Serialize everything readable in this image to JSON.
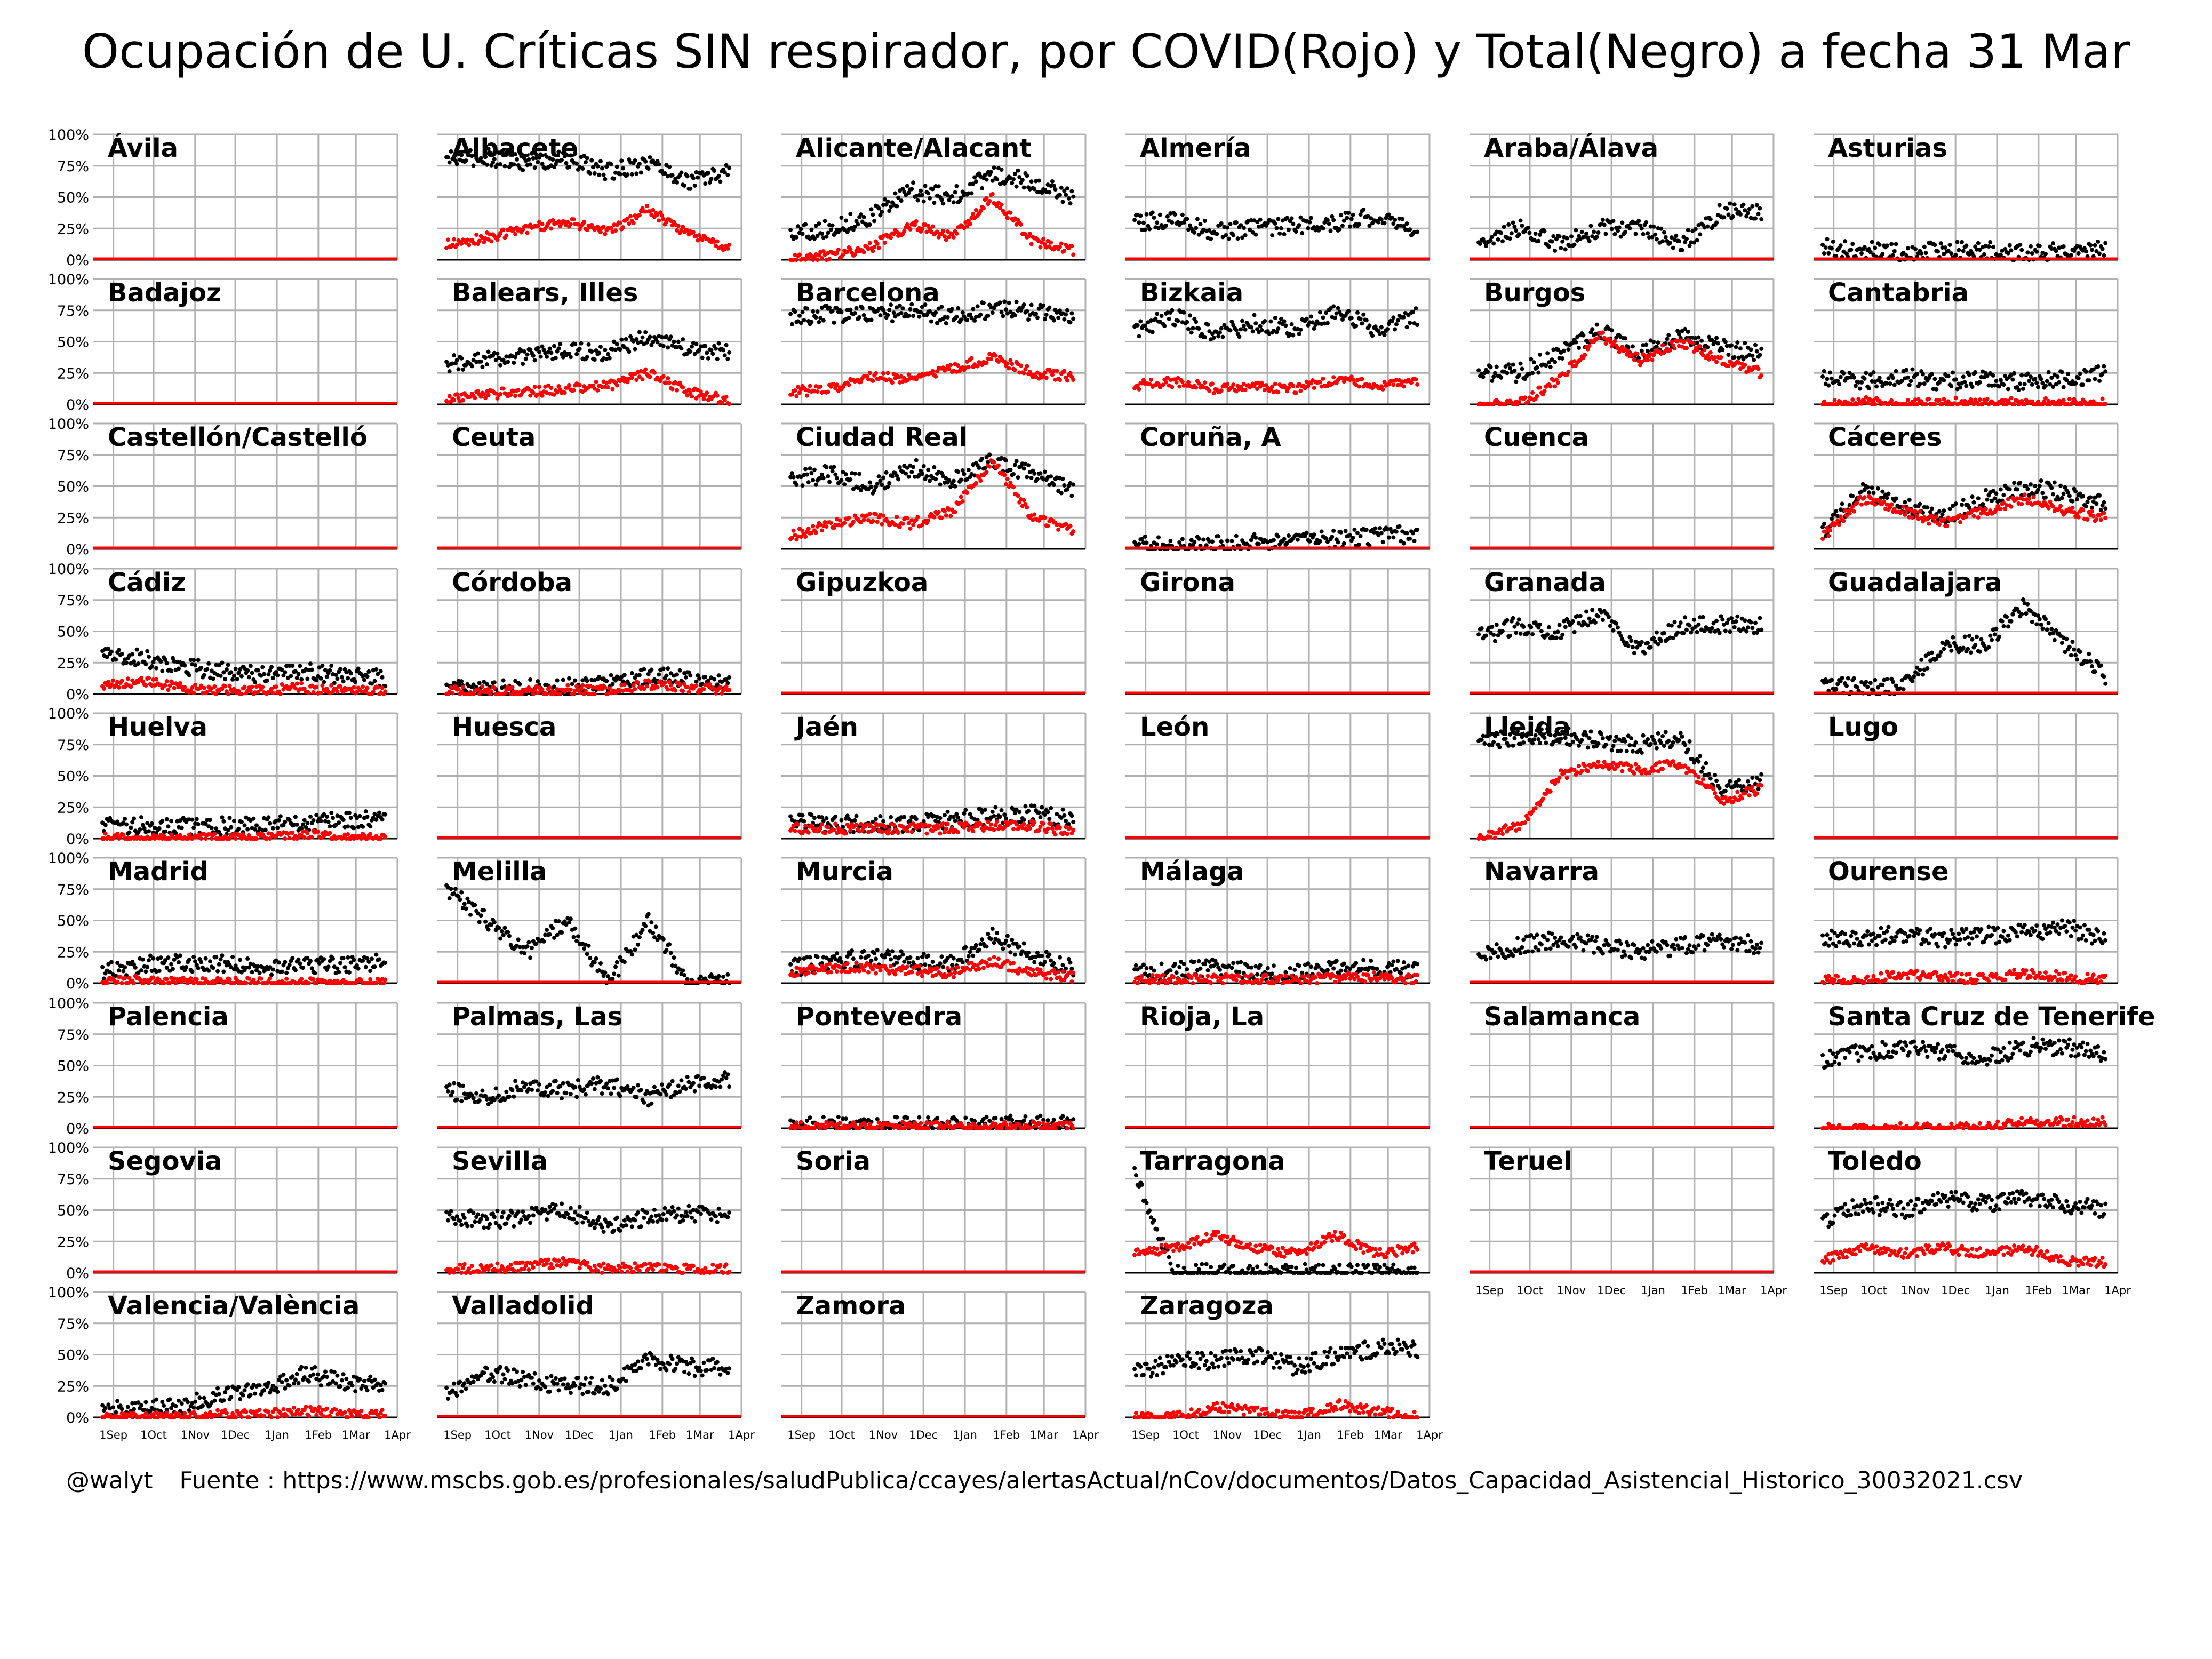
{
  "chart_data": {
    "type": "scatter",
    "title": "Ocupación de U. Críticas SIN respirador, por COVID(Rojo) y Total(Negro) a fecha 31 Mar",
    "footer": {
      "handle": "@walyt",
      "source": "Fuente : https://www.mscbs.gob.es/profesionales/saludPublica/ccayes/alertasActual/nCov/documentos/Datos_Capacidad_Asistencial_Historico_30032021.csv"
    },
    "ylim": [
      0,
      100
    ],
    "y_ticks": [
      "100%",
      "75%",
      "50%",
      "25%",
      "0%"
    ],
    "x_ticks": [
      "1Sep",
      "1Oct",
      "1Nov",
      "1Dec",
      "1Jan",
      "1Feb",
      "1Mar",
      "1Apr"
    ],
    "x_range": [
      "2020-08-17",
      "2021-04-01"
    ],
    "grid": true,
    "colors": {
      "covid": "#ff0000",
      "total": "#000000",
      "grid": "#b0b0b0"
    },
    "series_legend": {
      "covid": "COVID(Rojo)",
      "total": "Total(Negro)"
    },
    "panels": [
      {
        "name": "Ávila",
        "total": [
          0,
          0,
          0,
          0,
          0,
          0,
          0,
          0
        ],
        "covid": [
          0,
          0,
          0,
          0,
          0,
          0,
          0,
          0
        ]
      },
      {
        "name": "Albacete",
        "total": [
          80,
          82,
          78,
          80,
          70,
          78,
          62,
          70
        ],
        "covid": [
          12,
          18,
          25,
          30,
          22,
          40,
          20,
          8
        ]
      },
      {
        "name": "Alicante/Alacant",
        "total": [
          22,
          25,
          35,
          55,
          50,
          68,
          62,
          50
        ],
        "covid": [
          2,
          3,
          10,
          28,
          18,
          50,
          15,
          8
        ]
      },
      {
        "name": "Almería",
        "total": [
          30,
          32,
          22,
          25,
          28,
          30,
          35,
          25
        ],
        "covid": [
          0,
          0,
          0,
          0,
          0,
          0,
          0,
          0
        ]
      },
      {
        "name": "Araba/Álava",
        "total": [
          12,
          25,
          12,
          25,
          25,
          12,
          38,
          38
        ],
        "covid": [
          0,
          0,
          0,
          0,
          0,
          0,
          0,
          0
        ]
      },
      {
        "name": "Asturias",
        "total": [
          10,
          8,
          5,
          8,
          8,
          5,
          8,
          8
        ],
        "covid": [
          0,
          0,
          0,
          0,
          0,
          0,
          0,
          0
        ]
      },
      {
        "name": "Badajoz",
        "total": [
          0,
          0,
          0,
          0,
          0,
          0,
          0,
          0
        ],
        "covid": [
          0,
          0,
          0,
          0,
          0,
          0,
          0,
          0
        ]
      },
      {
        "name": "Balears, Illes",
        "total": [
          32,
          35,
          38,
          42,
          42,
          55,
          45,
          42
        ],
        "covid": [
          5,
          8,
          10,
          12,
          15,
          25,
          10,
          3
        ]
      },
      {
        "name": "Barcelona",
        "total": [
          70,
          72,
          72,
          74,
          70,
          76,
          74,
          72
        ],
        "covid": [
          10,
          12,
          22,
          20,
          28,
          38,
          25,
          22
        ]
      },
      {
        "name": "Bizkaia",
        "total": [
          60,
          70,
          55,
          65,
          60,
          75,
          60,
          70
        ],
        "covid": [
          15,
          18,
          12,
          15,
          12,
          20,
          15,
          18
        ]
      },
      {
        "name": "Burgos",
        "total": [
          25,
          25,
          40,
          60,
          40,
          55,
          45,
          40
        ],
        "covid": [
          0,
          0,
          20,
          55,
          35,
          50,
          35,
          25
        ]
      },
      {
        "name": "Cantabria",
        "total": [
          20,
          18,
          22,
          18,
          20,
          18,
          20,
          25
        ],
        "covid": [
          0,
          2,
          0,
          2,
          0,
          2,
          0,
          2
        ]
      },
      {
        "name": "Castellón/Castelló",
        "total": [
          0,
          0,
          0,
          0,
          0,
          0,
          0,
          0
        ],
        "covid": [
          0,
          0,
          0,
          0,
          0,
          0,
          0,
          0
        ]
      },
      {
        "name": "Ceuta",
        "total": [
          0,
          0,
          0,
          0,
          0,
          0,
          0,
          0
        ],
        "covid": [
          0,
          0,
          0,
          0,
          0,
          0,
          0,
          0
        ]
      },
      {
        "name": "Ciudad Real",
        "total": [
          55,
          60,
          50,
          65,
          55,
          70,
          60,
          45
        ],
        "covid": [
          10,
          20,
          25,
          20,
          30,
          70,
          25,
          15
        ]
      },
      {
        "name": "Coruña, A",
        "total": [
          3,
          3,
          4,
          5,
          6,
          8,
          10,
          12
        ],
        "covid": [
          0,
          0,
          0,
          0,
          0,
          0,
          0,
          0
        ]
      },
      {
        "name": "Cuenca",
        "total": [
          0,
          0,
          0,
          0,
          0,
          0,
          0,
          0
        ],
        "covid": [
          0,
          0,
          0,
          0,
          0,
          0,
          0,
          0
        ]
      },
      {
        "name": "Cáceres",
        "total": [
          15,
          45,
          35,
          25,
          40,
          50,
          45,
          35
        ],
        "covid": [
          10,
          40,
          30,
          20,
          30,
          40,
          30,
          25
        ]
      },
      {
        "name": "Cádiz",
        "total": [
          32,
          28,
          22,
          18,
          15,
          18,
          15,
          12
        ],
        "covid": [
          8,
          10,
          5,
          3,
          3,
          5,
          3,
          2
        ]
      },
      {
        "name": "Córdoba",
        "total": [
          5,
          5,
          5,
          6,
          8,
          15,
          12,
          8
        ],
        "covid": [
          2,
          2,
          2,
          3,
          3,
          8,
          5,
          3
        ]
      },
      {
        "name": "Gipuzkoa",
        "total": [
          0,
          0,
          0,
          0,
          0,
          0,
          0,
          0
        ],
        "covid": [
          0,
          0,
          0,
          0,
          0,
          0,
          0,
          0
        ]
      },
      {
        "name": "Girona",
        "total": [
          0,
          0,
          0,
          0,
          0,
          0,
          0,
          0
        ],
        "covid": [
          0,
          0,
          0,
          0,
          0,
          0,
          0,
          0
        ]
      },
      {
        "name": "Granada",
        "total": [
          45,
          55,
          50,
          65,
          35,
          55,
          55,
          55
        ],
        "covid": [
          0,
          0,
          0,
          0,
          0,
          0,
          0,
          0
        ]
      },
      {
        "name": "Guadalajara",
        "total": [
          8,
          5,
          5,
          40,
          40,
          70,
          40,
          15
        ],
        "covid": [
          0,
          0,
          0,
          0,
          0,
          0,
          0,
          0
        ]
      },
      {
        "name": "Huelva",
        "total": [
          10,
          10,
          10,
          10,
          10,
          12,
          15,
          15
        ],
        "covid": [
          0,
          0,
          0,
          0,
          0,
          3,
          0,
          0
        ]
      },
      {
        "name": "Huesca",
        "total": [
          0,
          0,
          0,
          0,
          0,
          0,
          0,
          0
        ],
        "covid": [
          0,
          0,
          0,
          0,
          0,
          0,
          0,
          0
        ]
      },
      {
        "name": "Jaén",
        "total": [
          15,
          12,
          12,
          12,
          15,
          18,
          20,
          15
        ],
        "covid": [
          8,
          8,
          8,
          8,
          8,
          10,
          10,
          5
        ]
      },
      {
        "name": "León",
        "total": [
          0,
          0,
          0,
          0,
          0,
          0,
          0,
          0
        ],
        "covid": [
          0,
          0,
          0,
          0,
          0,
          0,
          0,
          0
        ]
      },
      {
        "name": "Lleida",
        "total": [
          75,
          82,
          82,
          78,
          75,
          80,
          40,
          45
        ],
        "covid": [
          0,
          10,
          50,
          60,
          55,
          60,
          30,
          40
        ]
      },
      {
        "name": "Lugo",
        "total": [
          0,
          0,
          0,
          0,
          0,
          0,
          0,
          0
        ],
        "covid": [
          0,
          0,
          0,
          0,
          0,
          0,
          0,
          0
        ]
      },
      {
        "name": "Madrid",
        "total": [
          10,
          15,
          16,
          15,
          12,
          14,
          15,
          16
        ],
        "covid": [
          2,
          2,
          1,
          1,
          0,
          0,
          0,
          0
        ]
      },
      {
        "name": "Melilla",
        "total": [
          75,
          50,
          25,
          50,
          0,
          50,
          0,
          0
        ],
        "covid": [
          0,
          0,
          0,
          0,
          0,
          0,
          0,
          0
        ]
      },
      {
        "name": "Murcia",
        "total": [
          12,
          18,
          20,
          18,
          15,
          38,
          22,
          12
        ],
        "covid": [
          8,
          12,
          12,
          10,
          8,
          18,
          8,
          5
        ]
      },
      {
        "name": "Málaga",
        "total": [
          8,
          10,
          12,
          10,
          8,
          12,
          12,
          10
        ],
        "covid": [
          2,
          3,
          3,
          3,
          2,
          5,
          5,
          3
        ]
      },
      {
        "name": "Navarra",
        "total": [
          20,
          30,
          35,
          30,
          25,
          30,
          35,
          30
        ],
        "covid": [
          0,
          0,
          0,
          0,
          0,
          0,
          0,
          0
        ]
      },
      {
        "name": "Ourense",
        "total": [
          35,
          35,
          40,
          35,
          38,
          40,
          45,
          35
        ],
        "covid": [
          2,
          3,
          8,
          5,
          3,
          8,
          5,
          2
        ]
      },
      {
        "name": "Palencia",
        "total": [
          0,
          0,
          0,
          0,
          0,
          0,
          0,
          0
        ],
        "covid": [
          0,
          0,
          0,
          0,
          0,
          0,
          0,
          0
        ]
      },
      {
        "name": "Palmas, Las",
        "total": [
          30,
          25,
          35,
          30,
          35,
          25,
          35,
          40
        ],
        "covid": [
          0,
          0,
          0,
          0,
          0,
          0,
          0,
          0
        ]
      },
      {
        "name": "Pontevedra",
        "total": [
          3,
          3,
          3,
          2,
          3,
          4,
          3,
          3
        ],
        "covid": [
          1,
          1,
          1,
          1,
          1,
          1,
          1,
          1
        ]
      },
      {
        "name": "Rioja, La",
        "total": [
          0,
          0,
          0,
          0,
          0,
          0,
          0,
          0
        ],
        "covid": [
          0,
          0,
          0,
          0,
          0,
          0,
          0,
          0
        ]
      },
      {
        "name": "Salamanca",
        "total": [
          0,
          0,
          0,
          0,
          0,
          0,
          0,
          0
        ],
        "covid": [
          0,
          0,
          0,
          0,
          0,
          0,
          0,
          0
        ]
      },
      {
        "name": "Santa Cruz de Tenerife",
        "total": [
          55,
          60,
          65,
          60,
          55,
          65,
          65,
          60
        ],
        "covid": [
          0,
          0,
          0,
          0,
          0,
          5,
          5,
          5
        ]
      },
      {
        "name": "Segovia",
        "total": [
          0,
          0,
          0,
          0,
          0,
          0,
          0,
          0
        ],
        "covid": [
          0,
          0,
          0,
          0,
          0,
          0,
          0,
          0
        ]
      },
      {
        "name": "Sevilla",
        "total": [
          45,
          42,
          45,
          50,
          35,
          45,
          48,
          45
        ],
        "covid": [
          3,
          3,
          5,
          8,
          3,
          5,
          3,
          3
        ]
      },
      {
        "name": "Soria",
        "total": [
          0,
          0,
          0,
          0,
          0,
          0,
          0,
          0
        ],
        "covid": [
          0,
          0,
          0,
          0,
          0,
          0,
          0,
          0
        ]
      },
      {
        "name": "Tarragona",
        "total": [
          80,
          0,
          0,
          0,
          0,
          0,
          0,
          0
        ],
        "covid": [
          15,
          20,
          30,
          20,
          15,
          30,
          15,
          20
        ]
      },
      {
        "name": "Teruel",
        "total": [
          0,
          0,
          0,
          0,
          0,
          0,
          0,
          0
        ],
        "covid": [
          0,
          0,
          0,
          0,
          0,
          0,
          0,
          0
        ]
      },
      {
        "name": "Toledo",
        "total": [
          40,
          55,
          50,
          60,
          55,
          60,
          55,
          50
        ],
        "covid": [
          10,
          20,
          15,
          20,
          15,
          20,
          10,
          8
        ]
      },
      {
        "name": "Valencia/València",
        "total": [
          6,
          7,
          8,
          20,
          22,
          35,
          28,
          25
        ],
        "covid": [
          0,
          0,
          0,
          2,
          2,
          5,
          3,
          2
        ]
      },
      {
        "name": "Valladolid",
        "total": [
          20,
          35,
          30,
          25,
          25,
          45,
          40,
          40
        ],
        "covid": [
          0,
          0,
          0,
          0,
          0,
          0,
          0,
          0
        ]
      },
      {
        "name": "Zamora",
        "total": [
          0,
          0,
          0,
          0,
          0,
          0,
          0,
          0
        ],
        "covid": [
          0,
          0,
          0,
          0,
          0,
          0,
          0,
          0
        ]
      },
      {
        "name": "Zaragoza",
        "total": [
          35,
          45,
          45,
          50,
          40,
          50,
          55,
          55
        ],
        "covid": [
          0,
          0,
          8,
          5,
          0,
          10,
          5,
          0
        ]
      }
    ]
  }
}
